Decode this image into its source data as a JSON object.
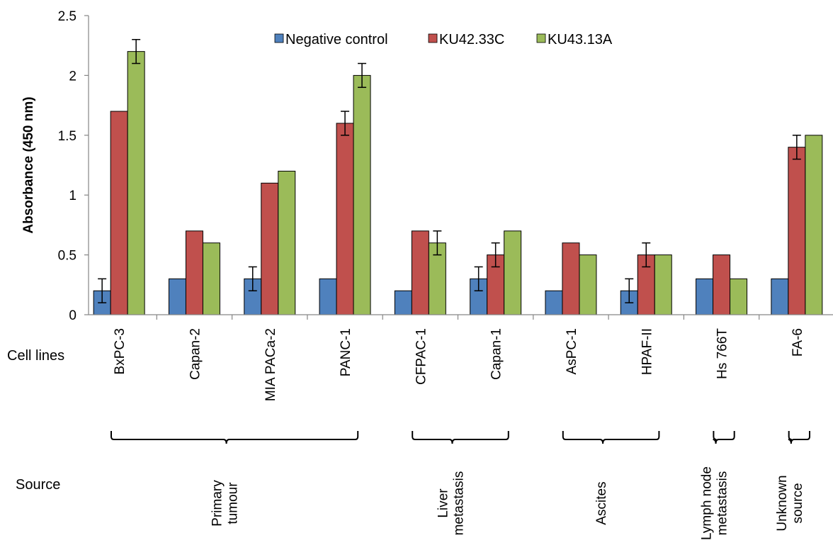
{
  "chart_data": {
    "type": "bar",
    "ylabel": "Absorbance (450 nm)",
    "ylim": [
      0,
      2.5
    ],
    "yticks": [
      "0",
      "0.5",
      "1",
      "1.5",
      "2",
      "2.5"
    ],
    "ytick_values": [
      0,
      0.5,
      1,
      1.5,
      2,
      2.5
    ],
    "grid": false,
    "legend_position": "top",
    "row_labels": {
      "cell_lines": "Cell lines",
      "source": "Source"
    },
    "categories": [
      "BxPC-3",
      "Capan-2",
      "MIA  PACa-2",
      "PANC-1",
      "CFPAC-1",
      "Capan-1",
      "AsPC-1",
      "HPAF-II",
      "Hs 766T",
      "FA-6"
    ],
    "series": [
      {
        "name": "Negative control",
        "color": "#4f81bd",
        "values": [
          0.2,
          0.3,
          0.3,
          0.3,
          0.2,
          0.3,
          0.2,
          0.2,
          0.3,
          0.3
        ],
        "errors": [
          0.1,
          0,
          0.1,
          0,
          0,
          0.1,
          0,
          0.1,
          0,
          0
        ]
      },
      {
        "name": "KU42.33C",
        "color": "#c0504d",
        "values": [
          1.7,
          0.7,
          1.1,
          1.6,
          0.7,
          0.5,
          0.6,
          0.5,
          0.5,
          1.4
        ],
        "errors": [
          0,
          0,
          0,
          0.1,
          0,
          0.1,
          0,
          0.1,
          0,
          0.1
        ]
      },
      {
        "name": "KU43.13A",
        "color": "#9bbb59",
        "values": [
          2.2,
          0.6,
          1.2,
          2.0,
          0.6,
          0.7,
          0.5,
          0.5,
          0.3,
          1.5
        ],
        "errors": [
          0.1,
          0,
          0,
          0.1,
          0.1,
          0,
          0,
          0,
          0,
          0
        ]
      }
    ],
    "groups": [
      {
        "label_lines": [
          "Primary",
          "tumour"
        ],
        "first": 0,
        "last": 3
      },
      {
        "label_lines": [
          "Liver",
          "metastasis"
        ],
        "first": 4,
        "last": 5
      },
      {
        "label_lines": [
          "Ascites"
        ],
        "first": 6,
        "last": 7
      },
      {
        "label_lines": [
          "Lymph node",
          "metastasis"
        ],
        "first": 8,
        "last": 8
      },
      {
        "label_lines": [
          "Unknown",
          "source"
        ],
        "first": 9,
        "last": 9
      }
    ]
  }
}
